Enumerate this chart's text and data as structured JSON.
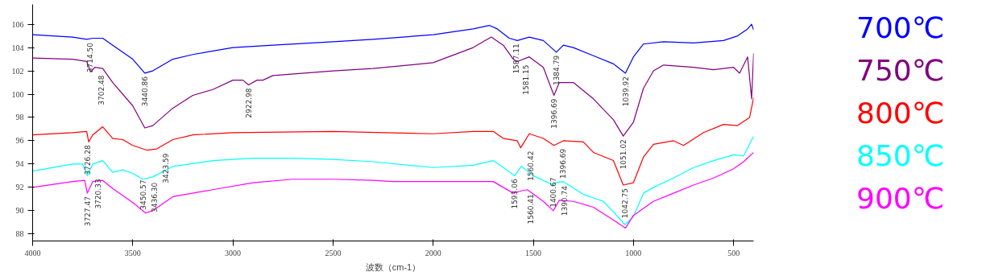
{
  "chart_data": {
    "type": "line",
    "xlabel": "波数（cm-1）",
    "xlim": [
      4000,
      400
    ],
    "ylim": [
      87.4,
      107.7
    ],
    "xticks": [
      4000,
      3500,
      3000,
      2500,
      2000,
      1500,
      1000,
      500
    ],
    "yticks": [
      88,
      90,
      92,
      94,
      96,
      98,
      100,
      102,
      104,
      106
    ],
    "grid": false,
    "legend": "right",
    "marker": "none",
    "line_style": "solid",
    "series": [
      {
        "name": "700℃",
        "color": "#0000ff",
        "x": [
          4000,
          3800,
          3730,
          3700,
          3650,
          3600,
          3500,
          3440,
          3400,
          3300,
          3200,
          3000,
          2800,
          2500,
          2300,
          2000,
          1800,
          1720,
          1680,
          1620,
          1580,
          1520,
          1450,
          1385,
          1350,
          1300,
          1200,
          1100,
          1040,
          1000,
          950,
          850,
          700,
          550,
          480,
          430,
          410,
          400
        ],
        "values": [
          105.1,
          104.9,
          104.7,
          104.8,
          104.8,
          104.2,
          103.0,
          101.8,
          102.0,
          103.0,
          103.4,
          104.0,
          104.2,
          104.5,
          104.7,
          105.1,
          105.6,
          105.9,
          105.6,
          104.8,
          104.6,
          104.9,
          104.6,
          103.6,
          104.2,
          104.0,
          103.3,
          102.6,
          101.8,
          103.2,
          104.3,
          104.5,
          104.4,
          104.6,
          105.0,
          105.6,
          106.0,
          105.5
        ]
      },
      {
        "name": "750℃",
        "color": "#800080",
        "x": [
          4000,
          3800,
          3730,
          3710,
          3690,
          3650,
          3600,
          3500,
          3440,
          3400,
          3300,
          3200,
          3100,
          3000,
          2950,
          2922,
          2880,
          2850,
          2800,
          2500,
          2300,
          2000,
          1800,
          1710,
          1650,
          1600,
          1581,
          1520,
          1450,
          1397,
          1370,
          1300,
          1200,
          1100,
          1051,
          1000,
          950,
          900,
          850,
          700,
          600,
          500,
          470,
          430,
          410,
          400
        ],
        "values": [
          103.1,
          103.0,
          102.8,
          101.9,
          102.3,
          102.2,
          101.0,
          99.0,
          97.1,
          97.3,
          98.8,
          99.9,
          100.4,
          101.2,
          101.2,
          100.8,
          101.2,
          101.2,
          101.6,
          102.0,
          102.2,
          102.7,
          104.0,
          104.9,
          104.2,
          103.0,
          102.8,
          103.2,
          102.3,
          99.9,
          101.0,
          101.0,
          99.6,
          97.8,
          96.4,
          97.6,
          100.5,
          102.0,
          102.5,
          102.3,
          102.1,
          102.3,
          101.8,
          103.2,
          99.6,
          103.5
        ]
      },
      {
        "name": "800℃",
        "color": "#ff0000",
        "x": [
          4000,
          3800,
          3730,
          3720,
          3700,
          3650,
          3600,
          3550,
          3500,
          3430,
          3380,
          3300,
          3200,
          3000,
          2500,
          2000,
          1800,
          1700,
          1650,
          1580,
          1563,
          1520,
          1450,
          1397,
          1350,
          1250,
          1200,
          1100,
          1051,
          1000,
          950,
          900,
          800,
          750,
          650,
          550,
          480,
          420,
          400
        ],
        "values": [
          96.5,
          96.7,
          96.8,
          95.9,
          96.5,
          97.2,
          96.2,
          96.1,
          95.6,
          95.2,
          95.3,
          96.1,
          96.5,
          96.7,
          96.8,
          96.6,
          96.8,
          96.8,
          96.2,
          96.0,
          95.4,
          96.6,
          96.2,
          95.6,
          96.0,
          95.9,
          95.0,
          94.3,
          92.2,
          92.4,
          94.6,
          95.7,
          96.0,
          95.6,
          96.7,
          97.4,
          97.3,
          98.0,
          99.7
        ]
      },
      {
        "name": "850℃",
        "color": "#00ffff",
        "x": [
          4000,
          3800,
          3750,
          3727,
          3700,
          3650,
          3600,
          3550,
          3500,
          3450,
          3400,
          3300,
          3100,
          2900,
          2700,
          2500,
          2300,
          2000,
          1800,
          1700,
          1650,
          1593,
          1560,
          1500,
          1400,
          1390,
          1350,
          1250,
          1150,
          1100,
          1042,
          1000,
          950,
          900,
          800,
          700,
          600,
          500,
          450,
          400
        ],
        "values": [
          93.4,
          94.0,
          94.0,
          93.0,
          94.0,
          94.3,
          93.3,
          93.5,
          93.2,
          92.7,
          92.9,
          93.8,
          94.3,
          94.5,
          94.5,
          94.4,
          94.2,
          93.7,
          93.9,
          94.3,
          93.7,
          93.0,
          93.8,
          93.0,
          92.2,
          92.4,
          92.5,
          91.4,
          90.8,
          89.9,
          88.8,
          89.5,
          91.5,
          92.0,
          92.8,
          93.7,
          94.3,
          94.8,
          94.7,
          96.4
        ]
      },
      {
        "name": "900℃",
        "color": "#ff00ff",
        "x": [
          4000,
          3800,
          3740,
          3727,
          3700,
          3650,
          3600,
          3500,
          3436,
          3400,
          3300,
          3100,
          2900,
          2700,
          2500,
          2300,
          2200,
          1800,
          1700,
          1650,
          1600,
          1560,
          1530,
          1450,
          1400,
          1370,
          1300,
          1200,
          1100,
          1040,
          1000,
          900,
          800,
          700,
          600,
          500,
          450,
          400
        ],
        "values": [
          92.0,
          92.5,
          92.6,
          91.5,
          92.5,
          92.6,
          91.9,
          90.7,
          89.8,
          90.0,
          91.2,
          91.8,
          92.4,
          92.7,
          92.7,
          92.6,
          92.5,
          92.5,
          92.5,
          92.0,
          91.5,
          91.7,
          91.8,
          90.8,
          90.0,
          90.9,
          90.8,
          90.3,
          89.2,
          88.5,
          89.6,
          90.8,
          91.5,
          92.2,
          92.8,
          93.6,
          94.2,
          95.0
        ]
      }
    ],
    "annotations": [
      {
        "text": "3714.50",
        "x": 3714.5,
        "y": 104.7
      },
      {
        "text": "3702.48",
        "x": 3702.48,
        "y": 101.9
      },
      {
        "text": "3440.86",
        "x": 3440.86,
        "y": 101.8
      },
      {
        "text": "2922.98",
        "x": 2922.98,
        "y": 100.8
      },
      {
        "text": "3423.59",
        "x": 3423.59,
        "y": 95.2
      },
      {
        "text": "3726.28",
        "x": 3726.28,
        "y": 95.9
      },
      {
        "text": "3436.30",
        "x": 3436.3,
        "y": 92.7
      },
      {
        "text": "3720.33",
        "x": 3720.33,
        "y": 93.0
      },
      {
        "text": "3450.57",
        "x": 3450.57,
        "y": 89.8
      },
      {
        "text": "3727.47",
        "x": 3727.47,
        "y": 91.5
      },
      {
        "text": "1587.11",
        "x": 1587.11,
        "y": 104.6
      },
      {
        "text": "1581.15",
        "x": 1581.15,
        "y": 102.8
      },
      {
        "text": "1384.79",
        "x": 1384.79,
        "y": 103.6
      },
      {
        "text": "1396.69",
        "x": 1396.69,
        "y": 99.9
      },
      {
        "text": "1039.92",
        "x": 1039.92,
        "y": 101.8
      },
      {
        "text": "1051.02",
        "x": 1051.02,
        "y": 96.4
      },
      {
        "text": "1560.42",
        "x": 1560.42,
        "y": 95.4
      },
      {
        "text": "1396.69",
        "x": 1396.69,
        "y": 95.6
      },
      {
        "text": "1042.75",
        "x": 1042.75,
        "y": 92.2
      },
      {
        "text": "1593.06",
        "x": 1593.06,
        "y": 93.0
      },
      {
        "text": "1390.74",
        "x": 1390.74,
        "y": 92.4
      },
      {
        "text": "1560.41",
        "x": 1560.41,
        "y": 91.7
      },
      {
        "text": "1400.67",
        "x": 1400.67,
        "y": 90.0
      }
    ]
  }
}
